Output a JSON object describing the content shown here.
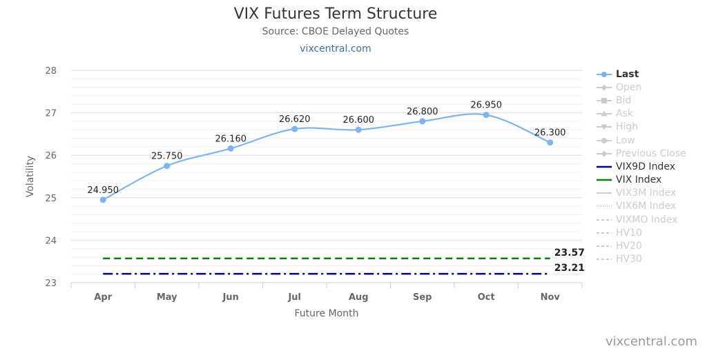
{
  "title": "VIX Futures Term Structure",
  "subtitle": "Source: CBOE Delayed Quotes",
  "source_link": "vixcentral.com",
  "credit": "vixcentral.com",
  "chart_data": {
    "type": "line",
    "title": "VIX Futures Term Structure",
    "subtitle": "Source: CBOE Delayed Quotes",
    "xlabel": "Future Month",
    "ylabel": "Volatility",
    "categories": [
      "Apr",
      "May",
      "Jun",
      "Jul",
      "Aug",
      "Sep",
      "Oct",
      "Nov"
    ],
    "ylim": [
      23,
      28
    ],
    "yticks": [
      23,
      24,
      25,
      26,
      27,
      28
    ],
    "grid": true,
    "legend_position": "right",
    "series": [
      {
        "name": "Last",
        "values": [
          24.95,
          25.75,
          26.16,
          26.62,
          26.6,
          26.8,
          26.95,
          26.3
        ],
        "labels": [
          "24.950",
          "25.750",
          "26.160",
          "26.620",
          "26.600",
          "26.800",
          "26.950",
          "26.300"
        ],
        "color": "#7cb5ec",
        "style": "smooth-line-with-markers"
      },
      {
        "name": "VIX Index",
        "value": 23.57,
        "label": "23.57",
        "color": "#008000",
        "style": "dashed"
      },
      {
        "name": "VIX9D Index",
        "value": 23.21,
        "label": "23.21",
        "color": "#000080",
        "style": "dash-dot"
      }
    ]
  },
  "legend": {
    "items": [
      {
        "label": "Last",
        "symbol": "circle",
        "active": true,
        "color": "#7cb5ec",
        "dash": ""
      },
      {
        "label": "Open",
        "symbol": "diamond",
        "active": false,
        "color": "#cccccc",
        "dash": ""
      },
      {
        "label": "Bid",
        "symbol": "square",
        "active": false,
        "color": "#cccccc",
        "dash": ""
      },
      {
        "label": "Ask",
        "symbol": "triangle",
        "active": false,
        "color": "#cccccc",
        "dash": ""
      },
      {
        "label": "High",
        "symbol": "triangle-down",
        "active": false,
        "color": "#cccccc",
        "dash": ""
      },
      {
        "label": "Low",
        "symbol": "circle",
        "active": false,
        "color": "#cccccc",
        "dash": ""
      },
      {
        "label": "Previous Close",
        "symbol": "diamond",
        "active": false,
        "color": "#cccccc",
        "dash": ""
      },
      {
        "label": "VIX9D Index",
        "symbol": "none",
        "active": true,
        "color": "#000080",
        "dash": ""
      },
      {
        "label": "VIX Index",
        "symbol": "none",
        "active": true,
        "color": "#008000",
        "dash": ""
      },
      {
        "label": "VIX3M Index",
        "symbol": "none",
        "active": false,
        "color": "#cccccc",
        "dash": ""
      },
      {
        "label": "VIX6M Index",
        "symbol": "none",
        "active": false,
        "color": "#cccccc",
        "dash": "1,2"
      },
      {
        "label": "VIXMO Index",
        "symbol": "none",
        "active": false,
        "color": "#cccccc",
        "dash": "4,3"
      },
      {
        "label": "HV10",
        "symbol": "none",
        "active": false,
        "color": "#cccccc",
        "dash": "4,3"
      },
      {
        "label": "HV20",
        "symbol": "none",
        "active": false,
        "color": "#cccccc",
        "dash": "4,3"
      },
      {
        "label": "HV30",
        "symbol": "none",
        "active": false,
        "color": "#cccccc",
        "dash": "4,3"
      }
    ]
  }
}
